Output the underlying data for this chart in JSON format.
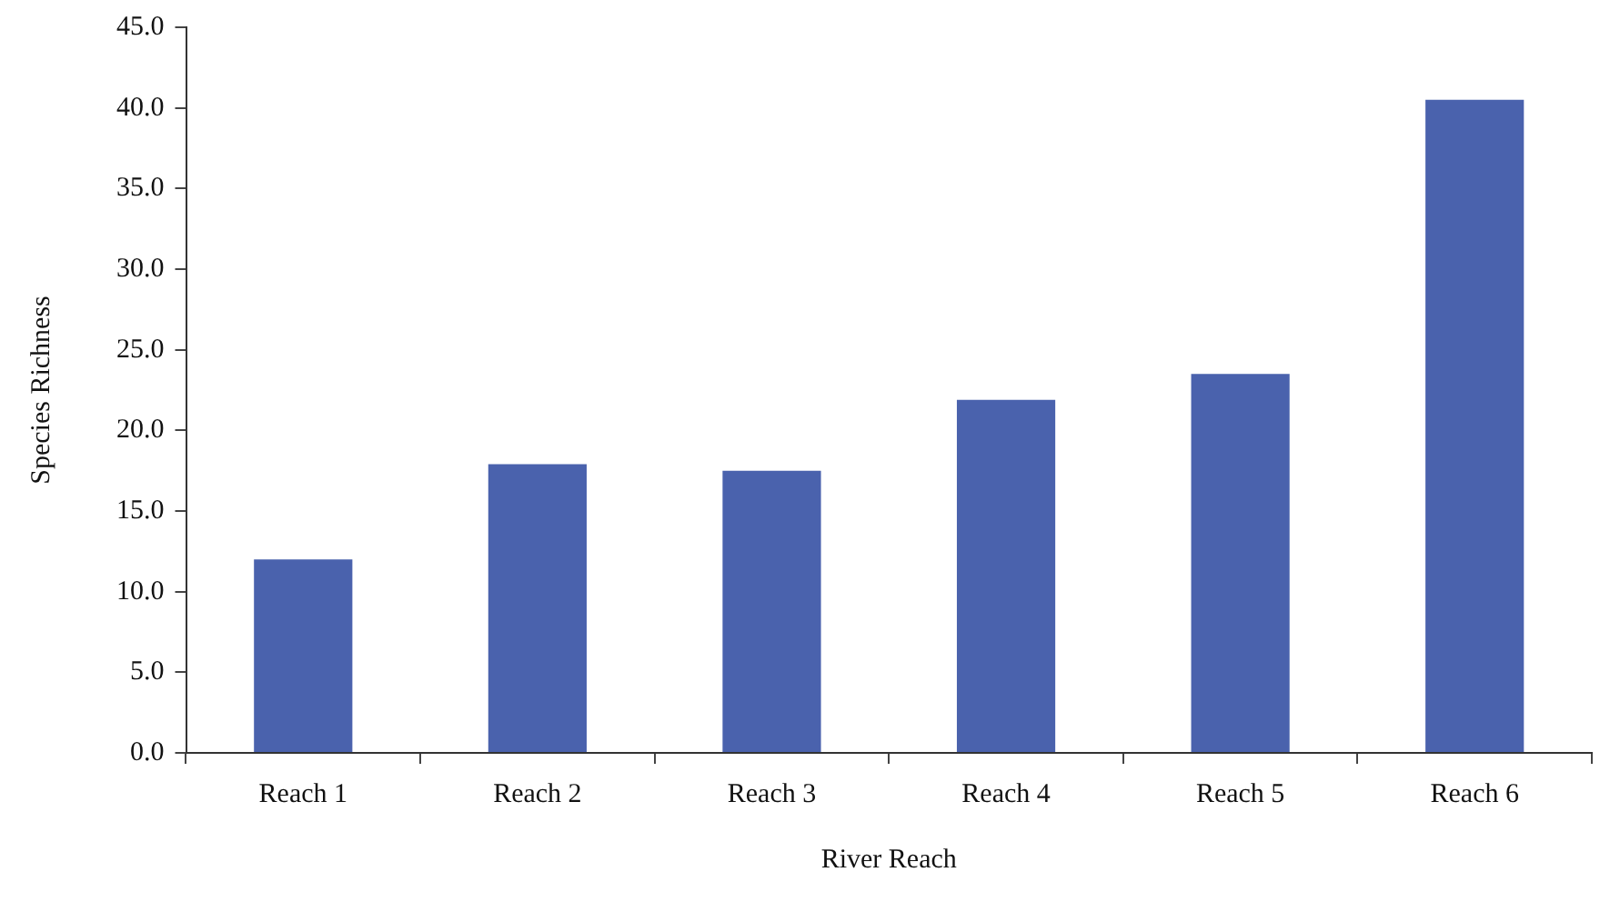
{
  "chart_data": {
    "type": "bar",
    "xlabel": "River Reach",
    "ylabel": "Species Richness",
    "categories": [
      "Reach 1",
      "Reach 2",
      "Reach 3",
      "Reach 4",
      "Reach 5",
      "Reach 6"
    ],
    "values": [
      12.0,
      17.9,
      17.5,
      21.9,
      23.5,
      40.5
    ],
    "color": "#4a62ad",
    "ylim": [
      0,
      45
    ],
    "yticks": [
      {
        "value": 0,
        "label": "0.0"
      },
      {
        "value": 5,
        "label": "5.0"
      },
      {
        "value": 10,
        "label": "10.0"
      },
      {
        "value": 15,
        "label": "15.0"
      },
      {
        "value": 20,
        "label": "20.0"
      },
      {
        "value": 25,
        "label": "25.0"
      },
      {
        "value": 30,
        "label": "30.0"
      },
      {
        "value": 35,
        "label": "35.0"
      },
      {
        "value": 40,
        "label": "40.0"
      },
      {
        "value": 45,
        "label": "45.0"
      }
    ],
    "grid": false,
    "legend": false
  }
}
